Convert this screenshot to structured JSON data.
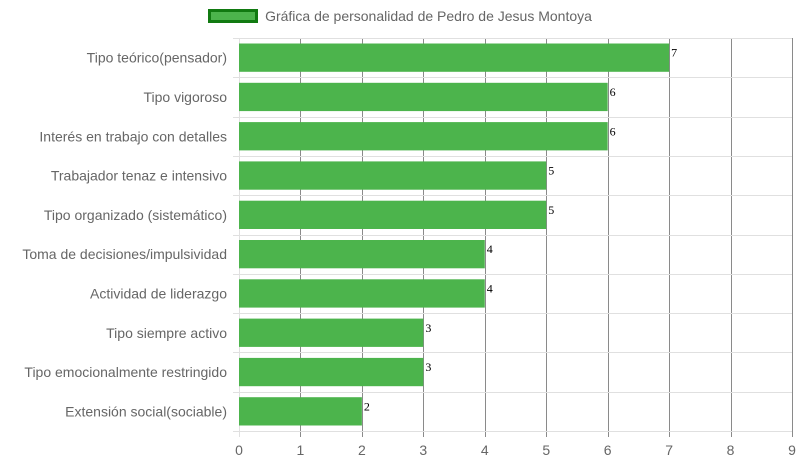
{
  "chart_data": {
    "type": "bar",
    "orientation": "horizontal",
    "legend": {
      "label": "Gráfica de personalidad de Pedro de Jesus Montoya",
      "position": "top"
    },
    "categories": [
      "Tipo teórico(pensador)",
      "Tipo vigoroso",
      "Interés en trabajo con detalles",
      "Trabajador tenaz e intensivo",
      "Tipo organizado (sistemático)",
      "Toma de decisiones/impulsividad",
      "Actividad de liderazgo",
      "Tipo siempre activo",
      "Tipo emocionalmente restringido",
      "Extensión social(sociable)"
    ],
    "values": [
      7,
      6,
      6,
      5,
      5,
      4,
      4,
      3,
      3,
      2
    ],
    "data_labels": [
      "7",
      "6",
      "6",
      "5",
      "5",
      "4",
      "4",
      "3",
      "3",
      "2"
    ],
    "xlim": [
      0,
      9
    ],
    "x_ticks": [
      "0",
      "1",
      "2",
      "3",
      "4",
      "5",
      "6",
      "7",
      "8",
      "9"
    ],
    "grid": true,
    "colors": {
      "bar_fill": "#4cb44c",
      "legend_border": "#117a11",
      "grid_line": "#e0e0e0",
      "grid_line_dark": "#8a8a8a",
      "label_text": "#666666"
    }
  }
}
